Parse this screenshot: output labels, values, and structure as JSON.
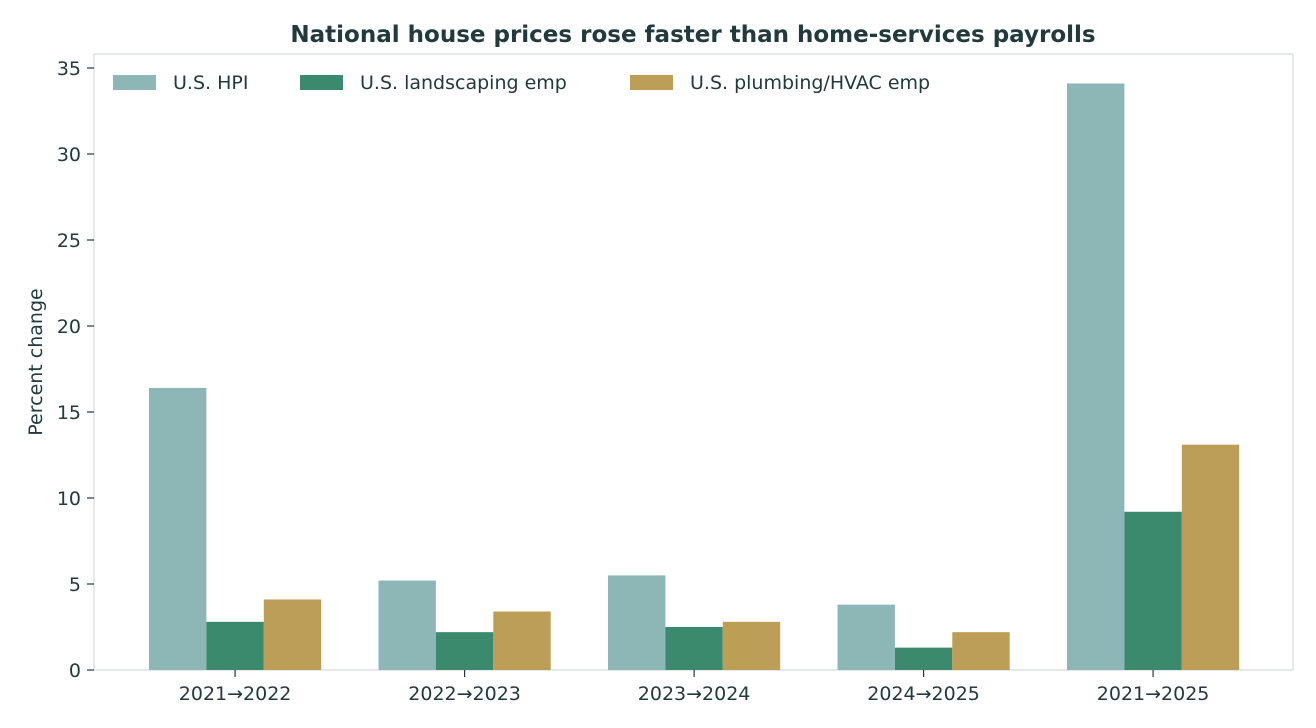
{
  "chart_data": {
    "type": "bar",
    "title": "National house prices rose faster than home-services payrolls",
    "xlabel": "",
    "ylabel": "Percent change",
    "categories": [
      "2021→2022",
      "2022→2023",
      "2023→2024",
      "2024→2025",
      "2021→2025"
    ],
    "series": [
      {
        "name": "U.S. HPI",
        "color": "#8db7b7",
        "values": [
          16.4,
          5.2,
          5.5,
          3.8,
          34.1
        ]
      },
      {
        "name": "U.S. landscaping emp",
        "color": "#3b8a6e",
        "values": [
          2.8,
          2.2,
          2.5,
          1.3,
          9.2
        ]
      },
      {
        "name": "U.S. plumbing/HVAC emp",
        "color": "#bd9e57",
        "values": [
          4.1,
          3.4,
          2.8,
          2.2,
          13.1
        ]
      }
    ],
    "ylim": [
      0,
      35
    ],
    "yticks": [
      0,
      5,
      10,
      15,
      20,
      25,
      30,
      35
    ],
    "grid": false,
    "legend_position": "top-left"
  }
}
